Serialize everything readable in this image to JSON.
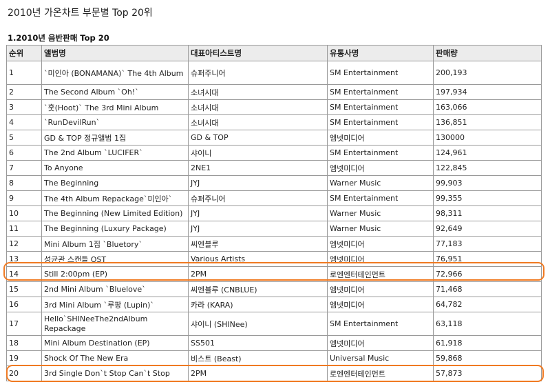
{
  "page_title": "2010년 가온차트 부문별 Top 20위",
  "section_title": "1.2010년 음반판매 Top 20",
  "table": {
    "headers": [
      "순위",
      "앨범명",
      "대표아티스트명",
      "유통사명",
      "판매량"
    ],
    "rows": [
      {
        "rank": "1",
        "album": "`미인아 (BONAMANA)` The 4th Album",
        "artist": "슈퍼주니어",
        "distributor": "SM Entertainment",
        "sales": "200,193"
      },
      {
        "rank": "2",
        "album": "The Second Album `Oh!`",
        "artist": "소녀시대",
        "distributor": "SM Entertainment",
        "sales": "197,934"
      },
      {
        "rank": "3",
        "album": "`훗(Hoot)` The 3rd Mini Album",
        "artist": "소녀시대",
        "distributor": "SM Entertainment",
        "sales": "163,066"
      },
      {
        "rank": "4",
        "album": "`RunDevilRun`",
        "artist": "소녀시대",
        "distributor": "SM Entertainment",
        "sales": "136,851"
      },
      {
        "rank": "5",
        "album": "GD & TOP 정규앨범 1집",
        "artist": "GD & TOP",
        "distributor": "엠넷미디어",
        "sales": "130000"
      },
      {
        "rank": "6",
        "album": "The 2nd Album `LUCIFER`",
        "artist": "샤이니",
        "distributor": "SM Entertainment",
        "sales": "124,961"
      },
      {
        "rank": "7",
        "album": "To Anyone",
        "artist": "2NE1",
        "distributor": "엠넷미디어",
        "sales": "122,845"
      },
      {
        "rank": "8",
        "album": "The Beginning",
        "artist": "JYJ",
        "distributor": "Warner Music",
        "sales": "99,903"
      },
      {
        "rank": "9",
        "album": "The 4th Album Repackage`미인아`",
        "artist": "슈퍼주니어",
        "distributor": "SM Entertainment",
        "sales": "99,355"
      },
      {
        "rank": "10",
        "album": "The Beginning (New Limited Edition)",
        "artist": "JYJ",
        "distributor": "Warner Music",
        "sales": "98,311"
      },
      {
        "rank": "11",
        "album": "The Beginning (Luxury Package)",
        "artist": "JYJ",
        "distributor": "Warner Music",
        "sales": "92,649"
      },
      {
        "rank": "12",
        "album": "Mini Album 1집 `Bluetory`",
        "artist": "씨엔블루",
        "distributor": "엠넷미디어",
        "sales": "77,183"
      },
      {
        "rank": "13",
        "album": "성균관 스캔들 OST",
        "artist": "Various Artists",
        "distributor": "엠넷미디어",
        "sales": "76,951"
      },
      {
        "rank": "14",
        "album": "Still 2:00pm (EP)",
        "artist": "2PM",
        "distributor": "로엔엔터테인먼트",
        "sales": "72,966"
      },
      {
        "rank": "15",
        "album": "2nd Mini Album `Bluelove`",
        "artist": "씨엔블루 (CNBLUE)",
        "distributor": "엠넷미디어",
        "sales": "71,468"
      },
      {
        "rank": "16",
        "album": "3rd Mini Album `루팡 (Lupin)`",
        "artist": "카라 (KARA)",
        "distributor": "엠넷미디어",
        "sales": "64,782"
      },
      {
        "rank": "17",
        "album": "Hello`SHINeeThe2ndAlbum Repackage",
        "artist": "샤이니 (SHINee)",
        "distributor": "SM Entertainment",
        "sales": "63,118"
      },
      {
        "rank": "18",
        "album": "Mini Album Destination (EP)",
        "artist": "SS501",
        "distributor": "엠넷미디어",
        "sales": "61,918"
      },
      {
        "rank": "19",
        "album": "Shock Of The New Era",
        "artist": "비스트 (Beast)",
        "distributor": "Universal Music",
        "sales": "59,868"
      },
      {
        "rank": "20",
        "album": "3rd Single Don`t Stop Can`t Stop",
        "artist": "2PM",
        "distributor": "로엔엔터테인먼트",
        "sales": "57,873"
      }
    ]
  },
  "highlight_color": "#f07a22"
}
